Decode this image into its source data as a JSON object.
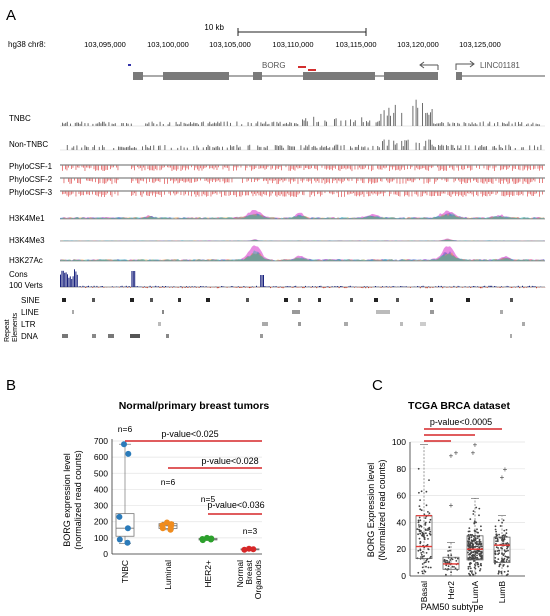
{
  "panel_a": {
    "label": "A",
    "scale_bar_label": "10 kb",
    "assembly_label": "hg38 chr8:",
    "coord_ticks": [
      "103,095,000",
      "103,100,000",
      "103,105,000",
      "103,110,000",
      "103,115,000",
      "103,120,000",
      "103,125,000"
    ],
    "gene_borg": "BORG",
    "gene_linc": "LINC01181",
    "track_labels": [
      "TNBC",
      "Non-TNBC",
      "PhyloCSF-1",
      "PhyloCSF-2",
      "PhyloCSF-3",
      "H3K4Me1",
      "H3K4Me3",
      "H3K27Ac"
    ],
    "cons_label_1": "Cons",
    "cons_label_2": "100 Verts",
    "repeat_labels": [
      "SINE",
      "LINE",
      "LTR",
      "DNA"
    ],
    "repeat_group_1": "Repeat",
    "repeat_group_2": "Elements",
    "colors": {
      "coverage": "#6d6d6d",
      "phylo": "#e57373",
      "histone_pink": "#e066d8",
      "histone_purple": "#6b40b8",
      "cons": "#1a237e"
    }
  },
  "panel_b": {
    "label": "B",
    "chart_data": {
      "type": "box",
      "title": "Normal/primary breast tumors",
      "ylabel_line1": "BORG expression level",
      "ylabel_line2": "(normalized read counts)",
      "ylim": [
        0,
        700
      ],
      "yticks": [
        "0",
        "100",
        "200",
        "300",
        "400",
        "500",
        "600",
        "700"
      ],
      "categories": [
        "TNBC",
        "Luminal",
        "HER2+",
        "Normal Breast Organoids"
      ],
      "n_labels": [
        "n=6",
        "n=6",
        "n=5",
        "n=3"
      ],
      "series": [
        {
          "values": [
            680,
            620,
            230,
            160,
            90,
            70
          ],
          "q1": 110,
          "median": 160,
          "q3": 250,
          "whisker_low": 65,
          "whisker_high": 680
        },
        {
          "values": [
            195,
            185,
            178,
            170,
            160,
            150
          ],
          "q1": 158,
          "median": 175,
          "q3": 188,
          "whisker_low": 150,
          "whisker_high": 197
        },
        {
          "values": [
            100,
            96,
            93,
            90,
            86
          ],
          "q1": 87,
          "median": 92,
          "q3": 97,
          "whisker_low": 84,
          "whisker_high": 100
        },
        {
          "values": [
            33,
            30,
            26
          ],
          "q1": 26,
          "median": 29,
          "q3": 32,
          "whisker_low": 25,
          "whisker_high": 34
        }
      ],
      "annotations": [
        "p-value<0.025",
        "p-value<0.028",
        "p-value<0.036"
      ],
      "point_colors": [
        "#2b7bba",
        "#f08c1e",
        "#2ca02c",
        "#d62728"
      ]
    }
  },
  "panel_c": {
    "label": "C",
    "chart_data": {
      "type": "box",
      "title": "TCGA BRCA dataset",
      "ylabel_line1": "BORG Expression level",
      "ylabel_line2": "(Normalized read counts)",
      "xlabel": "PAM50 subtype",
      "ylim": [
        0,
        100
      ],
      "yticks": [
        "0",
        "20",
        "40",
        "60",
        "80",
        "100"
      ],
      "categories": [
        "Basal",
        "Her2",
        "LumA",
        "LumB"
      ],
      "series": [
        {
          "q1": 13,
          "median": 22,
          "q3": 45,
          "whisker_low": 1,
          "whisker_high": 98
        },
        {
          "q1": 5,
          "median": 9,
          "q3": 14,
          "whisker_low": 0,
          "whisker_high": 25
        },
        {
          "q1": 12,
          "median": 20,
          "q3": 30,
          "whisker_low": 0,
          "whisker_high": 58
        },
        {
          "q1": 10,
          "median": 23,
          "q3": 29,
          "whisker_low": 0,
          "whisker_high": 45
        }
      ],
      "annotations": [
        "p-value<0.0005"
      ]
    }
  }
}
